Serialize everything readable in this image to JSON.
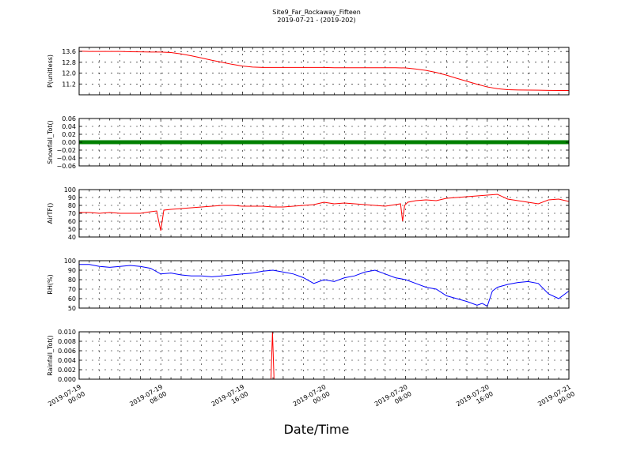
{
  "figure": {
    "title": "Site9_Far_Rockaway_Fifteen",
    "subtitle": "2019-07-21 - (2019-202)",
    "xlabel": "Date/Time",
    "x_tick_labels": [
      [
        "2019-07-19",
        "00:00"
      ],
      [
        "2019-07-19",
        "08:00"
      ],
      [
        "2019-07-19",
        "16:00"
      ],
      [
        "2019-07-20",
        "00:00"
      ],
      [
        "2019-07-20",
        "08:00"
      ],
      [
        "2019-07-20",
        "16:00"
      ],
      [
        "2019-07-21",
        "00:00"
      ]
    ]
  },
  "chart_data": [
    {
      "type": "line",
      "ylabel": "P(unitless)",
      "ylim": [
        10.4,
        13.9
      ],
      "yticks": [
        "13.6",
        "12.8",
        "12.0",
        "11.2"
      ],
      "ytick_values": [
        13.6,
        12.8,
        12.0,
        11.2
      ],
      "grid": true,
      "color": "#ff0000",
      "x_hours": [
        0,
        1,
        2,
        3,
        4,
        5,
        6,
        7,
        8,
        9,
        10,
        11,
        12,
        13,
        14,
        15,
        16,
        17,
        18,
        19,
        20,
        21,
        22,
        23,
        24,
        25,
        26,
        27,
        28,
        29,
        30,
        31,
        32,
        33,
        34,
        35,
        36,
        37,
        38,
        39,
        40,
        41,
        42,
        43,
        44,
        45,
        46,
        47,
        48
      ],
      "values": [
        13.62,
        13.6,
        13.6,
        13.6,
        13.6,
        13.58,
        13.57,
        13.56,
        13.56,
        13.52,
        13.42,
        13.28,
        13.12,
        12.95,
        12.8,
        12.65,
        12.52,
        12.45,
        12.42,
        12.42,
        12.42,
        12.42,
        12.42,
        12.42,
        12.42,
        12.4,
        12.4,
        12.4,
        12.4,
        12.4,
        12.4,
        12.4,
        12.38,
        12.3,
        12.2,
        12.05,
        11.85,
        11.62,
        11.4,
        11.18,
        10.98,
        10.85,
        10.78,
        10.76,
        10.75,
        10.74,
        10.73,
        10.72,
        10.72
      ]
    },
    {
      "type": "line",
      "ylabel": "Snowfall_Tot()",
      "ylim": [
        -0.06,
        0.06
      ],
      "yticks": [
        "0.06",
        "0.04",
        "0.02",
        "0.00",
        "−0.02",
        "−0.04",
        "−0.06"
      ],
      "ytick_values": [
        0.06,
        0.04,
        0.02,
        0.0,
        -0.02,
        -0.04,
        -0.06
      ],
      "grid": true,
      "color": "#008000",
      "x_hours": [
        0,
        48
      ],
      "values": [
        0.0,
        0.0
      ],
      "marker_line": true
    },
    {
      "type": "line",
      "ylabel": "AirTF()",
      "ylim": [
        40,
        100
      ],
      "yticks": [
        "100",
        "90",
        "80",
        "70",
        "60",
        "50",
        "40"
      ],
      "ytick_values": [
        100,
        90,
        80,
        70,
        60,
        50,
        40
      ],
      "grid": true,
      "color": "#ff0000",
      "x_hours": [
        0,
        1,
        2,
        3,
        4,
        5,
        6,
        7,
        7.6,
        7.8,
        8.0,
        8.3,
        9,
        10,
        11,
        12,
        13,
        14,
        15,
        16,
        17,
        18,
        19,
        20,
        21,
        22,
        23,
        24,
        25,
        26,
        27,
        28,
        29,
        30,
        31,
        31.5,
        31.7,
        31.9,
        32.2,
        33,
        34,
        35,
        36,
        37,
        38,
        39,
        40,
        41,
        42,
        43,
        44,
        45,
        46,
        47,
        48
      ],
      "values": [
        71,
        71,
        70,
        71,
        70,
        70,
        70,
        72,
        73,
        60,
        48,
        74,
        75,
        76,
        77,
        78,
        79,
        80,
        80,
        79,
        79,
        79,
        78,
        78,
        79,
        80,
        81,
        84,
        82,
        83,
        82,
        81,
        80,
        79,
        81,
        82,
        60,
        80,
        84,
        86,
        87,
        86,
        89,
        90,
        91,
        92,
        93,
        94,
        88,
        86,
        84,
        82,
        87,
        88,
        85
      ]
    },
    {
      "type": "line",
      "ylabel": "RH(%)",
      "ylim": [
        50,
        100
      ],
      "yticks": [
        "100",
        "90",
        "80",
        "70",
        "60",
        "50"
      ],
      "ytick_values": [
        100,
        90,
        80,
        70,
        60,
        50
      ],
      "grid": true,
      "color": "#0000ff",
      "x_hours": [
        0,
        1,
        2,
        3,
        4,
        5,
        6,
        7,
        8,
        9,
        10,
        11,
        12,
        13,
        14,
        15,
        16,
        17,
        18,
        19,
        20,
        21,
        22,
        23,
        24,
        25,
        26,
        27,
        28,
        29,
        30,
        31,
        32,
        33,
        34,
        35,
        36,
        37,
        38,
        39,
        39.5,
        40,
        40.5,
        41,
        42,
        43,
        44,
        45,
        46,
        47,
        48
      ],
      "values": [
        96,
        96,
        94,
        93,
        94,
        95,
        94,
        92,
        86,
        87,
        85,
        84,
        84,
        83,
        84,
        85,
        86,
        87,
        89,
        90,
        88,
        86,
        82,
        76,
        80,
        78,
        82,
        84,
        88,
        90,
        86,
        82,
        80,
        76,
        72,
        70,
        63,
        60,
        57,
        53,
        55,
        52,
        68,
        72,
        75,
        77,
        78,
        76,
        65,
        60,
        68
      ]
    },
    {
      "type": "line",
      "ylabel": "Rainfall_Tot()",
      "ylim": [
        0,
        0.01
      ],
      "yticks": [
        "0.010",
        "0.008",
        "0.006",
        "0.004",
        "0.002",
        "0.000"
      ],
      "ytick_values": [
        0.01,
        0.008,
        0.006,
        0.004,
        0.002,
        0.0
      ],
      "grid": true,
      "color": "#ff0000",
      "x_hours": [
        0,
        18.8,
        18.95,
        19.1,
        48
      ],
      "values": [
        0.0,
        0.0,
        0.01,
        0.0,
        0.0
      ]
    }
  ]
}
